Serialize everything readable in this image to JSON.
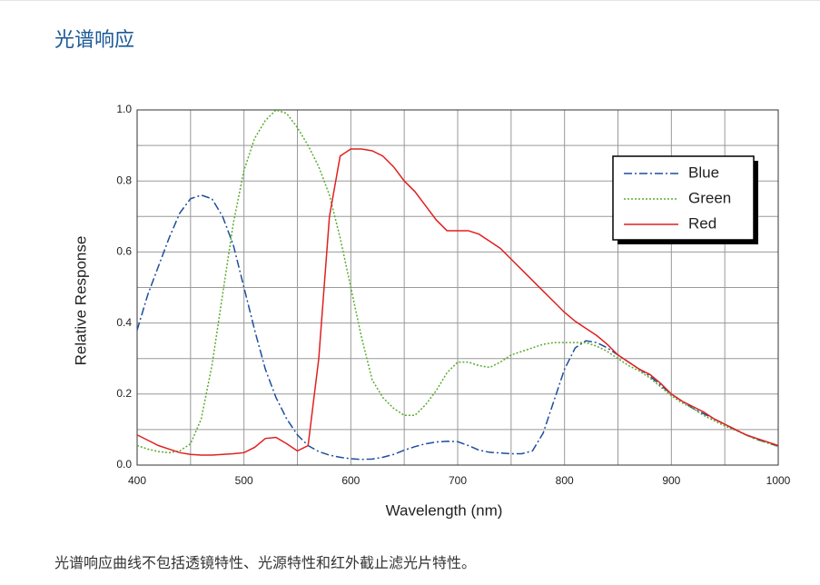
{
  "heading": "光谱响应",
  "caption": "光谱响应曲线不包括透镜特性、光源特性和红外截止滤光片特性。",
  "chart_data": {
    "type": "line",
    "xlabel": "Wavelength (nm)",
    "ylabel": "Relative Response",
    "xlim": [
      400,
      1000
    ],
    "ylim": [
      0,
      1
    ],
    "xticks": [
      400,
      500,
      600,
      700,
      800,
      900,
      1000
    ],
    "yticks": [
      {
        "value": 0,
        "label": "0.0"
      },
      0.2,
      0.4,
      0.6,
      0.8,
      {
        "value": 1,
        "label": "1.0"
      }
    ],
    "xgrid": [
      450,
      550,
      650,
      750,
      850,
      950
    ],
    "ygrid": [
      0.1,
      0.3,
      0.5,
      0.7,
      0.9
    ],
    "grid": true,
    "legend": "upper right",
    "x": [
      400,
      410,
      420,
      430,
      440,
      450,
      460,
      470,
      480,
      490,
      500,
      510,
      520,
      530,
      540,
      550,
      560,
      570,
      580,
      590,
      600,
      610,
      620,
      630,
      640,
      650,
      660,
      670,
      680,
      690,
      700,
      710,
      720,
      730,
      740,
      750,
      760,
      770,
      780,
      790,
      800,
      810,
      820,
      830,
      840,
      850,
      860,
      870,
      880,
      890,
      900,
      910,
      920,
      930,
      940,
      950,
      960,
      970,
      980,
      990,
      1000
    ],
    "series": [
      {
        "name": "Blue",
        "color": "#1f4e9c",
        "dash": "dashdot",
        "values": [
          0.38,
          0.48,
          0.56,
          0.64,
          0.71,
          0.75,
          0.76,
          0.75,
          0.7,
          0.62,
          0.5,
          0.38,
          0.27,
          0.19,
          0.13,
          0.085,
          0.055,
          0.038,
          0.028,
          0.022,
          0.018,
          0.016,
          0.017,
          0.022,
          0.03,
          0.042,
          0.052,
          0.06,
          0.065,
          0.067,
          0.066,
          0.055,
          0.042,
          0.036,
          0.034,
          0.032,
          0.032,
          0.04,
          0.09,
          0.18,
          0.27,
          0.33,
          0.35,
          0.345,
          0.33,
          0.31,
          0.29,
          0.27,
          0.25,
          0.225,
          0.2,
          0.18,
          0.16,
          0.145,
          0.13,
          0.115,
          0.1,
          0.085,
          0.072,
          0.063,
          0.053
        ]
      },
      {
        "name": "Green",
        "color": "#5aab2e",
        "dash": "dotted",
        "values": [
          0.055,
          0.045,
          0.038,
          0.035,
          0.04,
          0.06,
          0.13,
          0.28,
          0.48,
          0.68,
          0.83,
          0.92,
          0.97,
          1.0,
          0.99,
          0.95,
          0.9,
          0.84,
          0.76,
          0.64,
          0.5,
          0.36,
          0.24,
          0.19,
          0.16,
          0.14,
          0.14,
          0.17,
          0.21,
          0.26,
          0.29,
          0.29,
          0.28,
          0.275,
          0.29,
          0.31,
          0.32,
          0.33,
          0.34,
          0.345,
          0.345,
          0.345,
          0.345,
          0.335,
          0.32,
          0.3,
          0.28,
          0.265,
          0.245,
          0.22,
          0.195,
          0.175,
          0.16,
          0.14,
          0.125,
          0.11,
          0.098,
          0.085,
          0.072,
          0.062,
          0.052
        ]
      },
      {
        "name": "Red",
        "color": "#e02020",
        "dash": "solid",
        "values": [
          0.085,
          0.07,
          0.055,
          0.045,
          0.035,
          0.03,
          0.028,
          0.028,
          0.03,
          0.032,
          0.035,
          0.05,
          0.075,
          0.078,
          0.06,
          0.04,
          0.055,
          0.3,
          0.7,
          0.87,
          0.89,
          0.89,
          0.885,
          0.87,
          0.84,
          0.8,
          0.77,
          0.73,
          0.69,
          0.66,
          0.66,
          0.66,
          0.65,
          0.63,
          0.61,
          0.58,
          0.55,
          0.52,
          0.49,
          0.46,
          0.43,
          0.405,
          0.385,
          0.365,
          0.34,
          0.31,
          0.29,
          0.27,
          0.255,
          0.23,
          0.2,
          0.18,
          0.165,
          0.15,
          0.13,
          0.115,
          0.1,
          0.085,
          0.075,
          0.065,
          0.055
        ]
      }
    ]
  }
}
